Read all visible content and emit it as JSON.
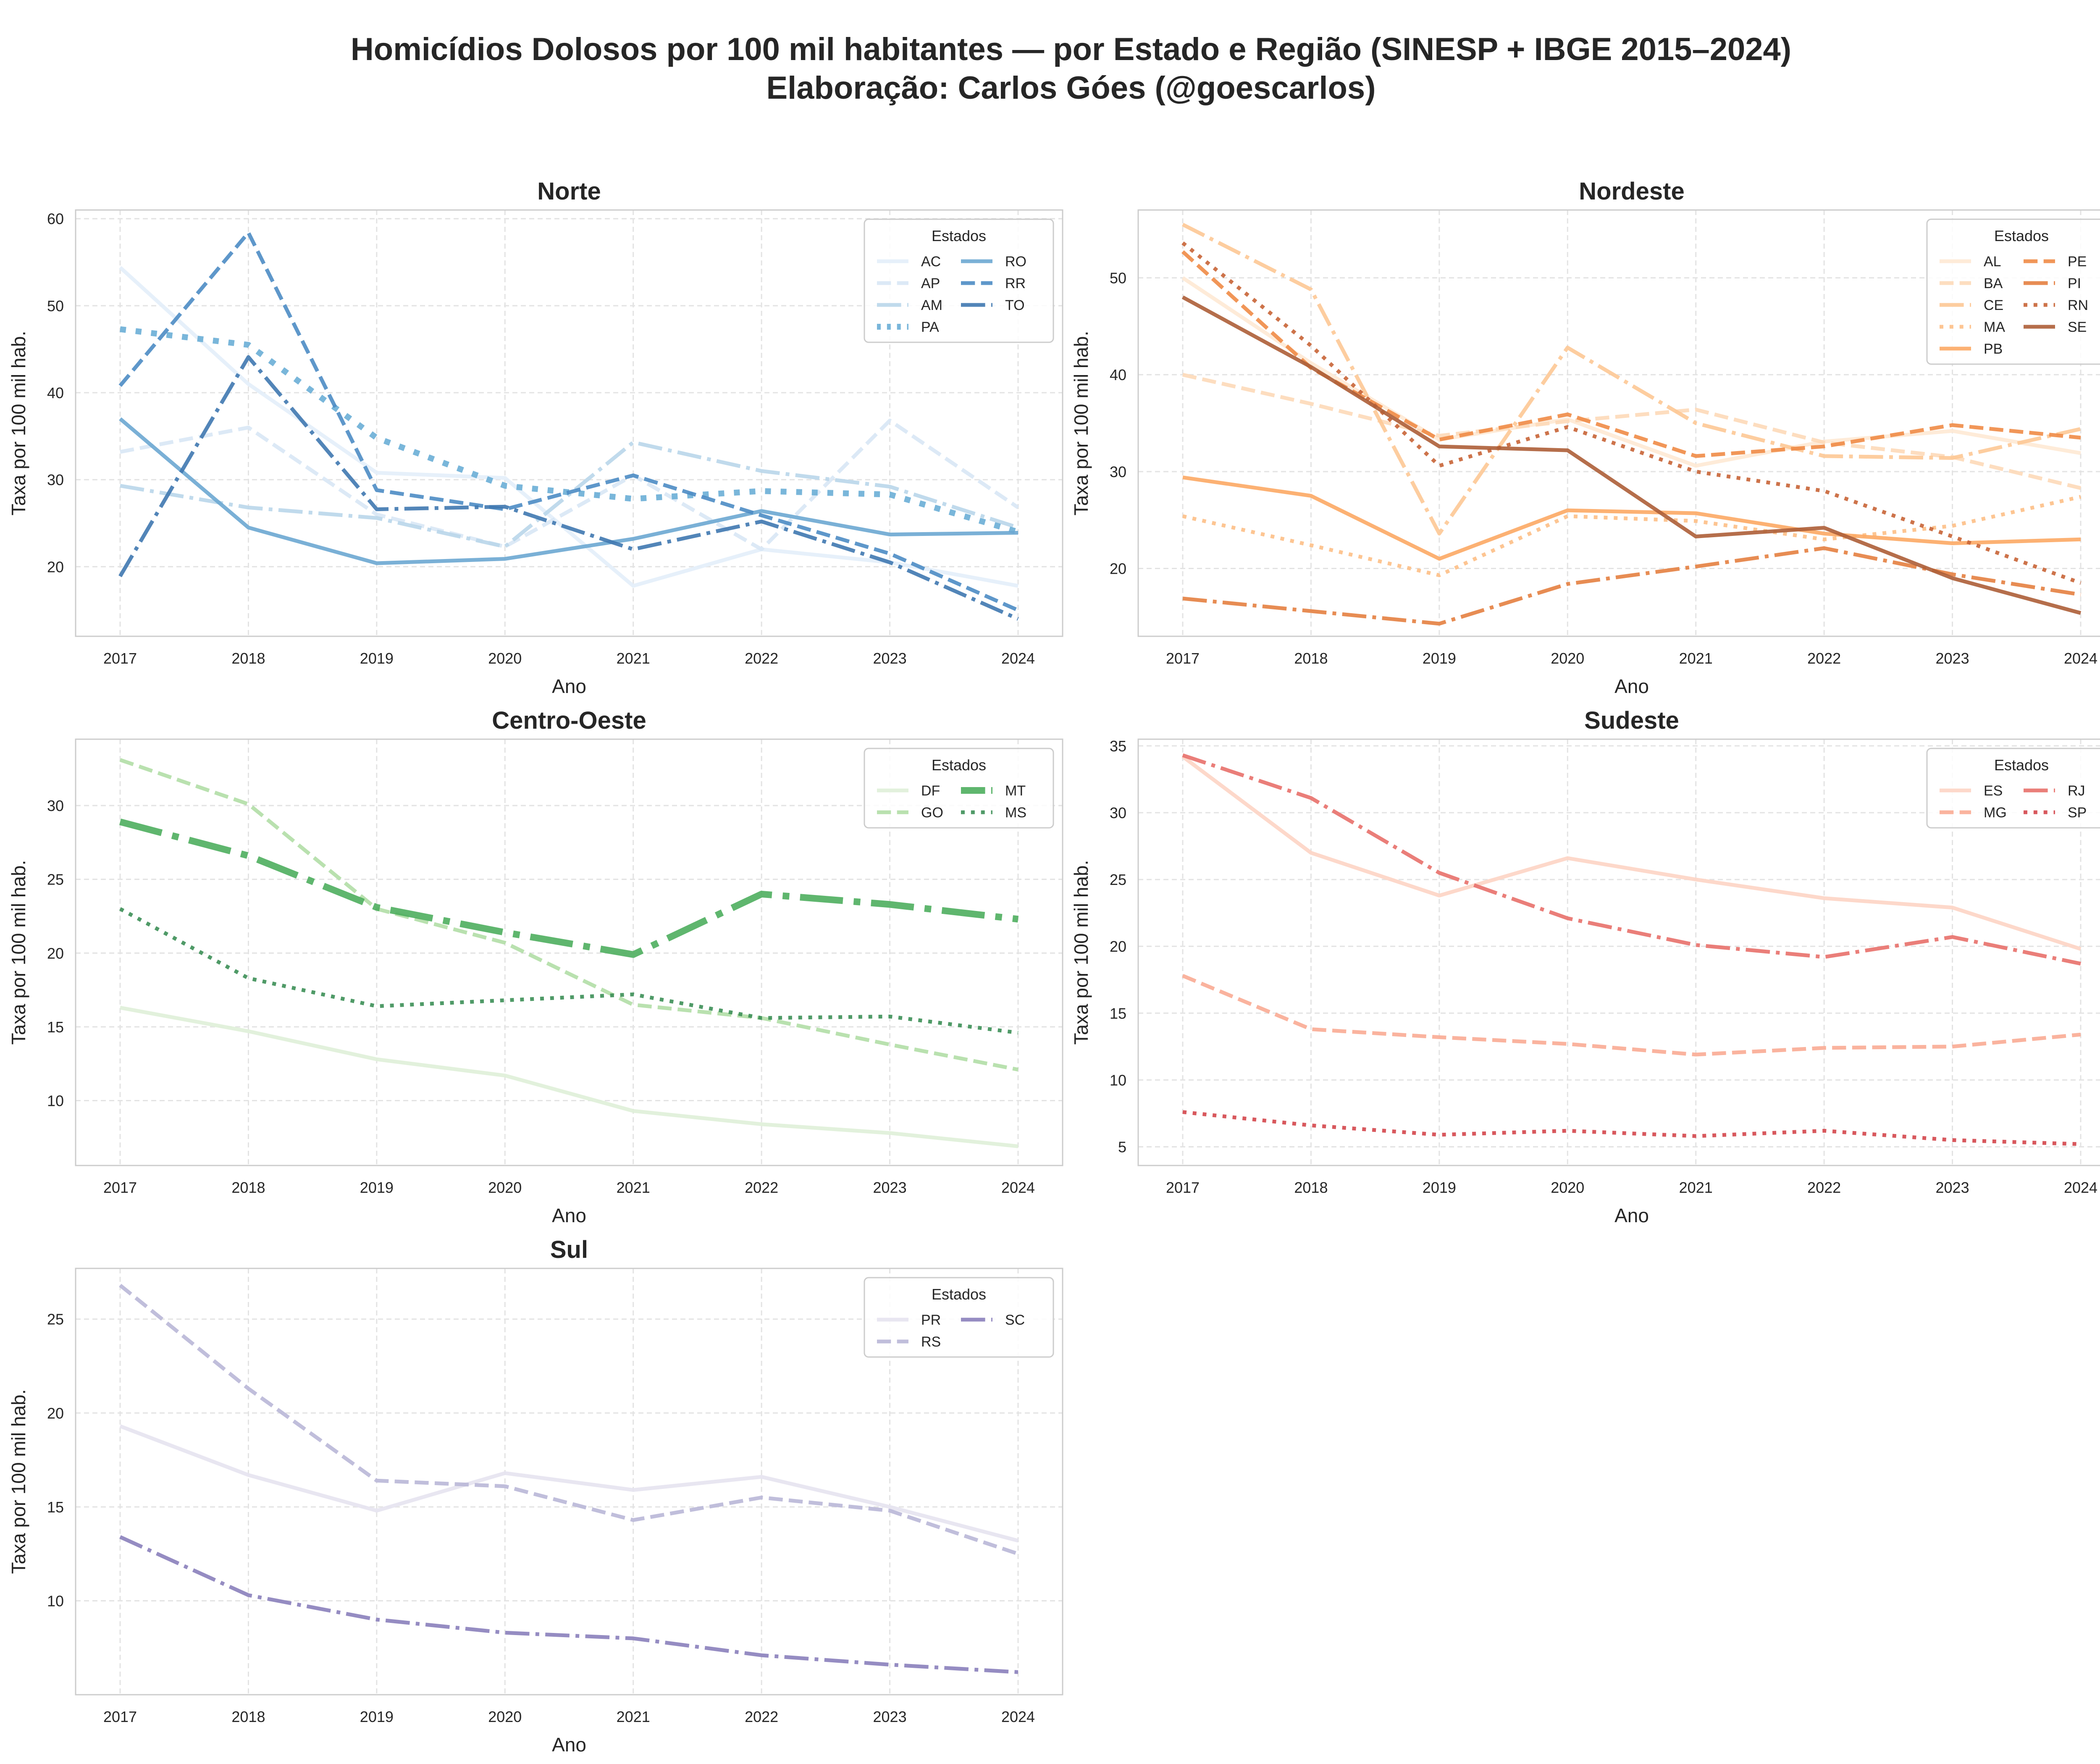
{
  "title_line1": "Homicídios Dolosos por 100 mil habitantes — por Estado e Região (SINESP + IBGE 2015–2024)",
  "title_line2": "Elaboração: Carlos Góes (@goescarlos)",
  "chart_data": [
    {
      "type": "line",
      "title": "Norte",
      "xlabel": "Ano",
      "ylabel": "Taxa por 100 mil hab.",
      "x": [
        2017,
        2018,
        2019,
        2020,
        2021,
        2022,
        2023,
        2024
      ],
      "ylim": [
        12,
        61
      ],
      "yticks": [
        20,
        30,
        40,
        50,
        60
      ],
      "grid": true,
      "legend": {
        "title": "Estados",
        "placement": "top-right",
        "columns": 2
      },
      "series": [
        {
          "name": "AC",
          "color": "#e3eef9",
          "dash": "solid",
          "width": 9,
          "values": [
            54.4,
            41.0,
            30.8,
            30.2,
            17.8,
            22.0,
            20.5,
            17.8
          ]
        },
        {
          "name": "AP",
          "color": "#d8e7f5",
          "dash": "dashed",
          "width": 9,
          "values": [
            33.2,
            36.0,
            26.0,
            22.3,
            30.5,
            22.0,
            36.8,
            26.8
          ]
        },
        {
          "name": "AM",
          "color": "#b9d6ea",
          "dash": "dashdot",
          "width": 9,
          "values": [
            29.3,
            26.8,
            25.6,
            22.3,
            34.3,
            31.0,
            29.2,
            24.5
          ]
        },
        {
          "name": "PA",
          "color": "#6aaed6",
          "dash": "dotted",
          "width": 14,
          "values": [
            47.3,
            45.5,
            34.8,
            29.3,
            27.8,
            28.7,
            28.3,
            24.0
          ]
        },
        {
          "name": "RO",
          "color": "#6ba7d2",
          "dash": "solid",
          "width": 9,
          "values": [
            37.0,
            24.5,
            20.4,
            20.9,
            23.2,
            26.4,
            23.7,
            23.9
          ]
        },
        {
          "name": "RR",
          "color": "#4c8cc4",
          "dash": "dashed",
          "width": 9,
          "values": [
            40.8,
            58.4,
            28.8,
            26.6,
            30.5,
            25.9,
            21.5,
            15.0
          ]
        },
        {
          "name": "TO",
          "color": "#3f78b0",
          "dash": "dashdot",
          "width": 9,
          "values": [
            18.9,
            44.1,
            26.6,
            26.9,
            22.0,
            25.2,
            20.5,
            14.0
          ]
        }
      ]
    },
    {
      "type": "line",
      "title": "Nordeste",
      "xlabel": "Ano",
      "ylabel": "Taxa por 100 mil hab.",
      "x": [
        2017,
        2018,
        2019,
        2020,
        2021,
        2022,
        2023,
        2024
      ],
      "ylim": [
        13,
        57
      ],
      "yticks": [
        20,
        30,
        40,
        50
      ],
      "grid": true,
      "legend": {
        "title": "Estados",
        "placement": "top-right",
        "columns": 2
      },
      "series": [
        {
          "name": "AL",
          "color": "#fee9d4",
          "dash": "solid",
          "width": 9,
          "values": [
            50.0,
            41.2,
            33.3,
            35.4,
            30.6,
            33.1,
            34.2,
            31.9
          ]
        },
        {
          "name": "BA",
          "color": "#fdd9b8",
          "dash": "dashed",
          "width": 9,
          "values": [
            40.0,
            37.0,
            33.7,
            35.2,
            36.4,
            33.0,
            31.5,
            28.3
          ]
        },
        {
          "name": "CE",
          "color": "#fdc895",
          "dash": "dashdot",
          "width": 9,
          "values": [
            55.5,
            48.8,
            23.6,
            42.8,
            35.0,
            31.6,
            31.4,
            34.4
          ]
        },
        {
          "name": "MA",
          "color": "#fdbf86",
          "dash": "dotted",
          "width": 9,
          "values": [
            25.4,
            22.4,
            19.3,
            25.4,
            24.9,
            23.0,
            24.4,
            27.4
          ]
        },
        {
          "name": "PB",
          "color": "#fca964",
          "dash": "solid",
          "width": 9,
          "values": [
            29.4,
            27.5,
            21.0,
            26.0,
            25.7,
            23.6,
            22.6,
            23.0
          ]
        },
        {
          "name": "PE",
          "color": "#f08b46",
          "dash": "dashed",
          "width": 9,
          "values": [
            52.7,
            40.7,
            33.3,
            35.9,
            31.6,
            32.6,
            34.8,
            33.5
          ]
        },
        {
          "name": "PI",
          "color": "#e47f40",
          "dash": "dashdot",
          "width": 9,
          "values": [
            16.9,
            15.6,
            14.3,
            18.4,
            20.2,
            22.1,
            19.4,
            17.3
          ]
        },
        {
          "name": "RN",
          "color": "#c86436",
          "dash": "dotted",
          "width": 9,
          "values": [
            53.6,
            43.0,
            30.6,
            34.6,
            30.0,
            28.0,
            23.3,
            18.5
          ]
        },
        {
          "name": "SE",
          "color": "#ad5e37",
          "dash": "solid",
          "width": 9,
          "values": [
            48.0,
            40.8,
            32.6,
            32.2,
            23.3,
            24.2,
            19.0,
            15.4
          ]
        }
      ]
    },
    {
      "type": "line",
      "title": "Centro-Oeste",
      "xlabel": "Ano",
      "ylabel": "Taxa por 100 mil hab.",
      "x": [
        2017,
        2018,
        2019,
        2020,
        2021,
        2022,
        2023,
        2024
      ],
      "ylim": [
        5.6,
        34.5
      ],
      "yticks": [
        10,
        15,
        20,
        25,
        30
      ],
      "grid": true,
      "legend": {
        "title": "Estados",
        "placement": "top-right",
        "columns": 2
      },
      "series": [
        {
          "name": "DF",
          "color": "#dff0d8",
          "dash": "solid",
          "width": 9,
          "values": [
            16.3,
            14.7,
            12.8,
            11.7,
            9.3,
            8.4,
            7.8,
            6.9
          ]
        },
        {
          "name": "GO",
          "color": "#b1dea6",
          "dash": "dashed",
          "width": 9,
          "values": [
            33.1,
            30.1,
            23.0,
            20.7,
            16.5,
            15.6,
            13.8,
            12.1
          ]
        },
        {
          "name": "MT",
          "color": "#4eae5e",
          "dash": "dashdot",
          "width": 16,
          "values": [
            28.9,
            26.6,
            23.1,
            21.4,
            19.9,
            24.0,
            23.3,
            22.3
          ]
        },
        {
          "name": "MS",
          "color": "#3c8f56",
          "dash": "dotted",
          "width": 9,
          "values": [
            23.0,
            18.3,
            16.4,
            16.8,
            17.2,
            15.6,
            15.7,
            14.6
          ]
        }
      ]
    },
    {
      "type": "line",
      "title": "Sudeste",
      "xlabel": "Ano",
      "ylabel": "Taxa por 100 mil hab.",
      "x": [
        2017,
        2018,
        2019,
        2020,
        2021,
        2022,
        2023,
        2024
      ],
      "ylim": [
        3.6,
        35.5
      ],
      "yticks": [
        5,
        10,
        15,
        20,
        25,
        30,
        35
      ],
      "grid": true,
      "legend": {
        "title": "Estados",
        "placement": "top-right",
        "columns": 2
      },
      "series": [
        {
          "name": "ES",
          "color": "#fdd4c4",
          "dash": "solid",
          "width": 9,
          "values": [
            34.2,
            27.0,
            23.8,
            26.6,
            25.0,
            23.6,
            22.9,
            19.8
          ]
        },
        {
          "name": "MG",
          "color": "#f9ab94",
          "dash": "dashed",
          "width": 9,
          "values": [
            17.8,
            13.8,
            13.2,
            12.7,
            11.9,
            12.4,
            12.5,
            13.4
          ]
        },
        {
          "name": "RJ",
          "color": "#e8706a",
          "dash": "dashdot",
          "width": 9,
          "values": [
            34.3,
            31.1,
            25.5,
            22.1,
            20.1,
            19.2,
            20.7,
            18.7
          ]
        },
        {
          "name": "SP",
          "color": "#d4464b",
          "dash": "dotted",
          "width": 9,
          "values": [
            7.6,
            6.6,
            5.9,
            6.2,
            5.8,
            6.2,
            5.5,
            5.2
          ]
        }
      ]
    },
    {
      "type": "line",
      "title": "Sul",
      "xlabel": "Ano",
      "ylabel": "Taxa por 100 mil hab.",
      "x": [
        2017,
        2018,
        2019,
        2020,
        2021,
        2022,
        2023,
        2024
      ],
      "ylim": [
        5.0,
        27.7
      ],
      "yticks": [
        10,
        15,
        20,
        25
      ],
      "grid": true,
      "legend": {
        "title": "Estados",
        "placement": "top-right",
        "columns": 2
      },
      "series": [
        {
          "name": "PR",
          "color": "#e5e3ef",
          "dash": "solid",
          "width": 9,
          "values": [
            19.3,
            16.7,
            14.8,
            16.8,
            15.9,
            16.6,
            15.0,
            13.2
          ]
        },
        {
          "name": "RS",
          "color": "#b9b7d7",
          "dash": "dashed",
          "width": 9,
          "values": [
            26.8,
            21.3,
            16.4,
            16.1,
            14.3,
            15.5,
            14.8,
            12.5
          ]
        },
        {
          "name": "SC",
          "color": "#8a7fbb",
          "dash": "dashdot",
          "width": 9,
          "values": [
            13.4,
            10.3,
            9.0,
            8.3,
            8.0,
            7.1,
            6.6,
            6.2
          ]
        }
      ]
    }
  ]
}
